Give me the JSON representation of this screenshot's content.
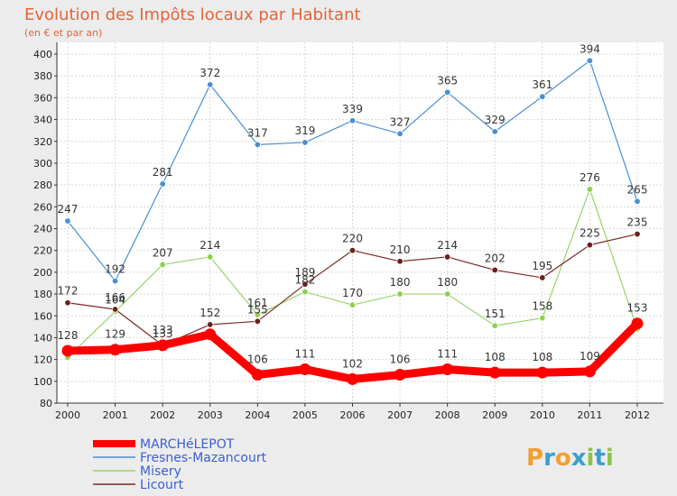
{
  "chart_data": {
    "type": "line",
    "title": "Evolution des Impôts locaux par Habitant",
    "subtitle": "(en € et par an)",
    "categories": [
      "2000",
      "2001",
      "2002",
      "2003",
      "2004",
      "2005",
      "2006",
      "2007",
      "2008",
      "2009",
      "2010",
      "2011",
      "2012"
    ],
    "ylim": [
      80,
      400
    ],
    "yticks": [
      80,
      100,
      120,
      140,
      160,
      180,
      200,
      220,
      240,
      260,
      280,
      300,
      320,
      340,
      360,
      380,
      400
    ],
    "grid": true,
    "legend_position": "bottom-left",
    "series": [
      {
        "name": "Fresnes-Mazancourt",
        "color": "#4a8fd0",
        "width": 1.2,
        "marker": "#4a8fd0",
        "values": [
          247,
          192,
          281,
          372,
          317,
          319,
          339,
          327,
          365,
          329,
          361,
          394,
          265
        ]
      },
      {
        "name": "Misery",
        "color": "#99d36a",
        "width": 1.2,
        "marker": "#8ed04f",
        "values": [
          122,
          164,
          207,
          214,
          161,
          182,
          170,
          180,
          180,
          151,
          158,
          276,
          148
        ]
      },
      {
        "name": "Licourt",
        "color": "#7a2a2a",
        "width": 1.2,
        "marker": "#6e1f1f",
        "values": [
          172,
          166,
          133,
          152,
          155,
          189,
          220,
          210,
          214,
          202,
          195,
          225,
          235
        ]
      },
      {
        "name": "MARCHéLEPOT",
        "color": "#ff0000",
        "width": 9,
        "marker": "#ff0000",
        "values": [
          128,
          129,
          133,
          143,
          106,
          111,
          102,
          106,
          111,
          108,
          108,
          109,
          153
        ]
      }
    ],
    "data_labels": [
      {
        "series": 0,
        "labels": [
          "247",
          "192",
          "281",
          "372",
          "317",
          "319",
          "339",
          "327",
          "365",
          "329",
          "361",
          "394",
          "265"
        ]
      },
      {
        "series": 1,
        "labels": [
          "",
          "164",
          "207",
          "214",
          "161",
          "182",
          "170",
          "180",
          "180",
          "151",
          "158",
          "276",
          ""
        ]
      },
      {
        "series": 2,
        "labels": [
          "172",
          "166",
          "133",
          "152",
          "155",
          "189",
          "220",
          "210",
          "214",
          "202",
          "195",
          "225",
          "235"
        ]
      },
      {
        "series": 3,
        "labels": [
          "128",
          "129",
          "133",
          "",
          "106",
          "111",
          "102",
          "106",
          "111",
          "108",
          "108",
          "109",
          "153"
        ]
      }
    ]
  },
  "logo": {
    "text": "Proxiti",
    "letters": [
      "P",
      "r",
      "o",
      "x",
      "i",
      "t",
      "i"
    ]
  }
}
